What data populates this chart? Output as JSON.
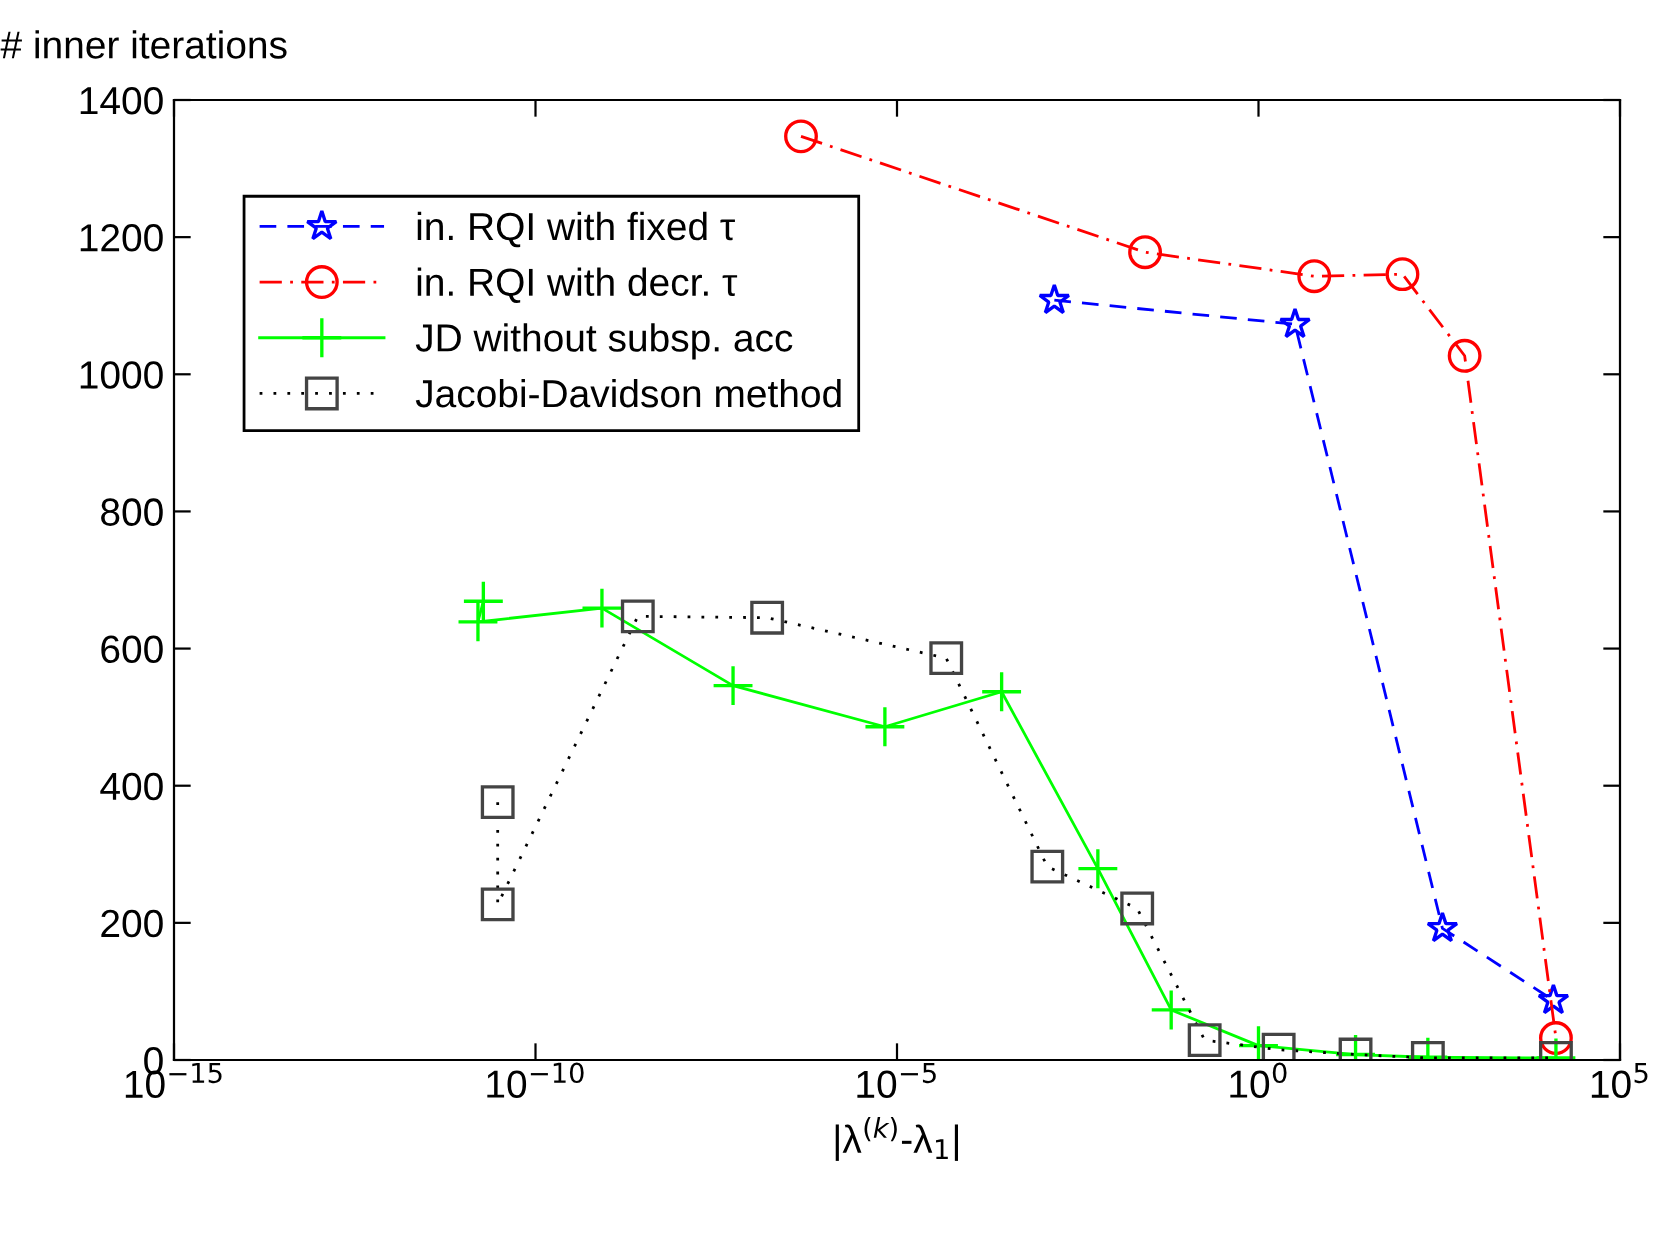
{
  "chart_data": {
    "type": "line",
    "ylabel": "# inner iterations",
    "xlabel": "|λ$^{(k)}$-λ$_{1}$|",
    "log": "x",
    "xlim": [
      1e-15,
      100000.0
    ],
    "xticks": [
      {
        "value": 1e-15,
        "label": "10$^{−15}$"
      },
      {
        "value": 1e-10,
        "label": "10$^{−10}$"
      },
      {
        "value": 1e-05,
        "label": "10$^{−5}$"
      },
      {
        "value": 1,
        "label": "10$^{0}$"
      },
      {
        "value": 100000.0,
        "label": "10$^{5}$"
      }
    ],
    "ylim": [
      0,
      1400
    ],
    "yticks": [
      0,
      200,
      400,
      600,
      800,
      1000,
      1200,
      1400
    ],
    "grid": false,
    "legend": "top left",
    "series": [
      {
        "name": "in. RQI with fixed τ",
        "color": "#0000ff",
        "marker": "star",
        "line_style": "dashed",
        "x": [
          0.0015,
          3.2,
          350,
          12000.0
        ],
        "values": [
          1108,
          1073,
          192,
          87
        ]
      },
      {
        "name": "in. RQI with decr. τ",
        "color": "#ff0000",
        "marker": "circle",
        "line_style": "dashdot",
        "x": [
          4.7e-07,
          0.027,
          5.9,
          98,
          710,
          13000.0
        ],
        "values": [
          1347,
          1178,
          1143,
          1146,
          1027,
          32
        ]
      },
      {
        "name": "JD without subsp. acc",
        "color": "#00ff00",
        "marker": "cross",
        "line_style": "solid",
        "x": [
          1.9e-11,
          1.6e-11,
          8.3e-10,
          5.4e-08,
          6.8e-06,
          0.00028,
          0.006,
          0.062,
          1,
          22,
          220,
          13000.0
        ],
        "values": [
          669,
          639,
          659,
          546,
          486,
          537,
          279,
          73,
          21,
          8,
          4,
          3
        ]
      },
      {
        "name": "Jacobi-Davidson method",
        "color": "#000000",
        "marker": "square",
        "line_style": "dotted",
        "x": [
          3e-11,
          3e-11,
          2.6e-09,
          1.6e-07,
          4.8e-05,
          0.0012,
          0.021,
          0.18,
          1.9,
          22,
          220,
          13000.0
        ],
        "values": [
          376,
          227,
          647,
          645,
          586,
          282,
          221,
          29,
          15,
          8,
          3,
          3
        ]
      }
    ]
  }
}
